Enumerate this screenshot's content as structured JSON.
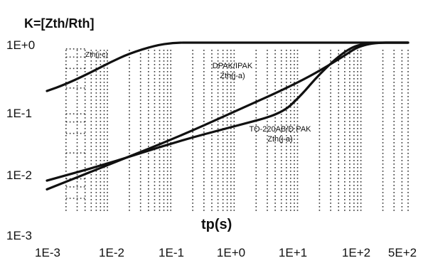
{
  "chart_data": {
    "type": "line",
    "title": "K=[Zth/Rth]",
    "xlabel": "tp(s)",
    "ylabel": "",
    "xscale": "log",
    "yscale": "log",
    "xlim": [
      0.001,
      500
    ],
    "ylim": [
      0.001,
      1
    ],
    "x_tick_labels": [
      "1E-3",
      "1E-2",
      "1E-1",
      "1E+0",
      "1E+1",
      "1E+2",
      "5E+2"
    ],
    "x_tick_values": [
      0.001,
      0.01,
      0.1,
      1,
      10,
      100,
      500
    ],
    "y_tick_labels": [
      "1E+0",
      "1E-1",
      "1E-2",
      "1E-3"
    ],
    "y_tick_values": [
      1,
      0.1,
      0.01,
      0.001
    ],
    "grid": true,
    "series": [
      {
        "name": "Zth(j-c)",
        "label_lines": [
          "Zth(j-c)"
        ],
        "x": [
          0.001,
          0.002,
          0.005,
          0.01,
          0.02,
          0.05,
          0.1,
          0.2,
          0.5,
          1,
          10,
          100,
          500
        ],
        "y": [
          0.18,
          0.23,
          0.35,
          0.5,
          0.68,
          0.9,
          1,
          1,
          1,
          1,
          1,
          1,
          1
        ]
      },
      {
        "name": "DPAK/IPAK Zth(j-a)",
        "label_lines": [
          "DPAK/IPAK",
          "Zth(j-a)"
        ],
        "x": [
          0.001,
          0.01,
          0.1,
          1,
          10,
          40,
          100,
          500
        ],
        "y": [
          0.0055,
          0.0135,
          0.033,
          0.09,
          0.25,
          0.55,
          1,
          1
        ]
      },
      {
        "name": "TO-220AB/D PAK Zth(j-a)",
        "label_lines": [
          "TO-220AB/D PAK",
          "Zth(j-a)"
        ],
        "x": [
          0.001,
          0.01,
          0.1,
          1,
          5,
          10,
          20,
          50,
          100,
          500
        ],
        "y": [
          0.0075,
          0.014,
          0.029,
          0.053,
          0.08,
          0.15,
          0.33,
          0.75,
          1,
          1
        ]
      }
    ]
  }
}
